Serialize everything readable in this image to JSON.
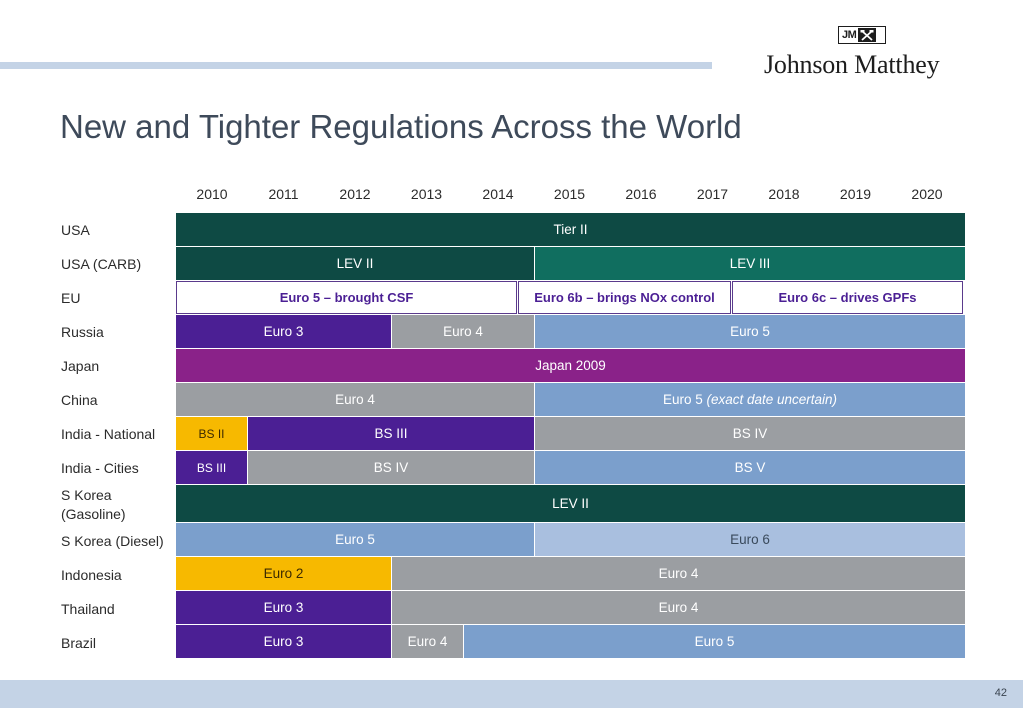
{
  "title": "New and Tighter Regulations Across the World",
  "logo": {
    "badge": "JM",
    "name": "Johnson Matthey"
  },
  "years": [
    "2010",
    "2011",
    "2012",
    "2013",
    "2014",
    "2015",
    "2016",
    "2017",
    "2018",
    "2019",
    "2020"
  ],
  "rows": [
    {
      "label": "USA",
      "bars": [
        {
          "text": "Tier II"
        }
      ]
    },
    {
      "label": "USA (CARB)",
      "bars": [
        {
          "text": "LEV II"
        },
        {
          "text": "LEV III"
        }
      ]
    },
    {
      "label": "EU",
      "bars": [
        {
          "text": "Euro 5 – brought CSF"
        },
        {
          "text": "Euro 6b – brings NOx control"
        },
        {
          "text": "Euro 6c – drives GPFs"
        }
      ]
    },
    {
      "label": "Russia",
      "bars": [
        {
          "text": "Euro 3"
        },
        {
          "text": "Euro 4"
        },
        {
          "text": "Euro 5"
        }
      ]
    },
    {
      "label": "Japan",
      "bars": [
        {
          "text": "Japan 2009"
        }
      ]
    },
    {
      "label": "China",
      "bars": [
        {
          "text": "Euro 4"
        },
        {
          "text": "Euro 5",
          "note": "(exact date uncertain)"
        }
      ]
    },
    {
      "label": "India - National",
      "bars": [
        {
          "text": "BS II"
        },
        {
          "text": "BS III"
        },
        {
          "text": "BS IV"
        }
      ]
    },
    {
      "label": "India - Cities",
      "bars": [
        {
          "text": "BS III"
        },
        {
          "text": "BS IV"
        },
        {
          "text": "BS V"
        }
      ]
    },
    {
      "label_line1": "S Korea",
      "label_line2": "(Gasoline)",
      "bars": [
        {
          "text": "LEV II"
        }
      ]
    },
    {
      "label": "S Korea (Diesel)",
      "bars": [
        {
          "text": "Euro 5"
        },
        {
          "text": "Euro 6"
        }
      ]
    },
    {
      "label": "Indonesia",
      "bars": [
        {
          "text": "Euro 2"
        },
        {
          "text": "Euro 4"
        }
      ]
    },
    {
      "label": "Thailand",
      "bars": [
        {
          "text": "Euro 3"
        },
        {
          "text": "Euro 4"
        }
      ]
    },
    {
      "label": "Brazil",
      "bars": [
        {
          "text": "Euro 3"
        },
        {
          "text": "Euro 4"
        },
        {
          "text": "Euro 5"
        }
      ]
    }
  ],
  "page_number": "42",
  "colors": {
    "dark_green": "#0e4a44",
    "green": "#106e5f",
    "purple": "#4b1f94",
    "grey": "#9b9ea2",
    "blue": "#7b9fcc",
    "magenta": "#8a2289",
    "yellow": "#f7b900",
    "light_blue": "#a9bfdf"
  }
}
